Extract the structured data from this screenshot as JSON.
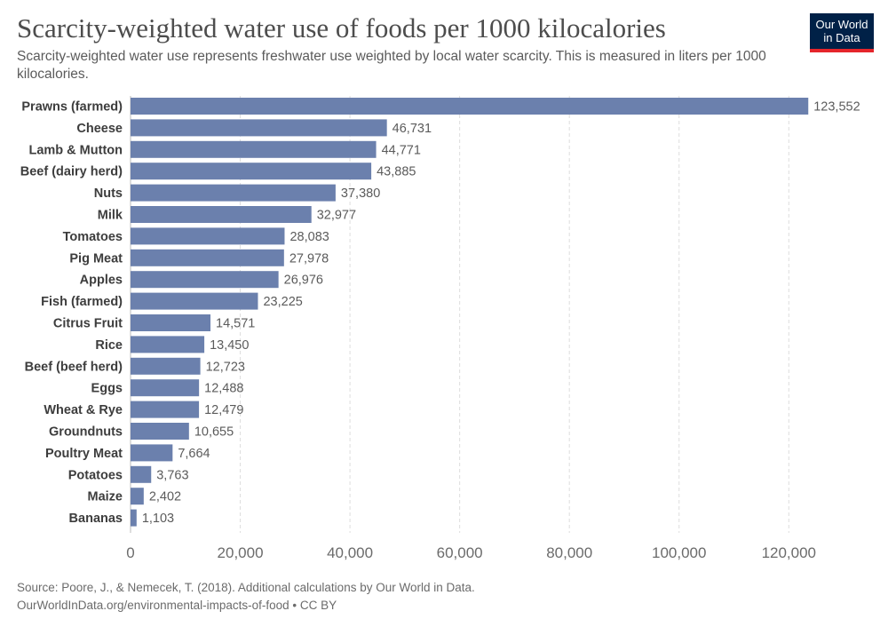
{
  "header": {
    "title": "Scarcity-weighted water use of foods per 1000 kilocalories",
    "subtitle": "Scarcity-weighted water use represents freshwater use weighted by local water scarcity. This is measured in liters per 1000 kilocalories.",
    "logo_line1": "Our World",
    "logo_line2": "in Data"
  },
  "footer": {
    "source": "Source: Poore, J., & Nemecek, T. (2018). Additional calculations by Our World in Data.",
    "url": "OurWorldInData.org/environmental-impacts-of-food • CC BY"
  },
  "colors": {
    "bar": "#6b80ad",
    "grid": "#dddddd",
    "logo_bg": "#002147",
    "logo_accent": "#e5252b"
  },
  "chart_data": {
    "type": "bar",
    "orientation": "horizontal",
    "categories": [
      "Prawns (farmed)",
      "Cheese",
      "Lamb & Mutton",
      "Beef (dairy herd)",
      "Nuts",
      "Milk",
      "Tomatoes",
      "Pig Meat",
      "Apples",
      "Fish (farmed)",
      "Citrus Fruit",
      "Rice",
      "Beef (beef herd)",
      "Eggs",
      "Wheat & Rye",
      "Groundnuts",
      "Poultry Meat",
      "Potatoes",
      "Maize",
      "Bananas"
    ],
    "values": [
      123552,
      46731,
      44771,
      43885,
      37380,
      32977,
      28083,
      27978,
      26976,
      23225,
      14571,
      13450,
      12723,
      12488,
      12479,
      10655,
      7664,
      3763,
      2402,
      1103
    ],
    "value_labels": [
      "123,552",
      "46,731",
      "44,771",
      "43,885",
      "37,380",
      "32,977",
      "28,083",
      "27,978",
      "26,976",
      "23,225",
      "14,571",
      "13,450",
      "12,723",
      "12,488",
      "12,479",
      "10,655",
      "7,664",
      "3,763",
      "2,402",
      "1,103"
    ],
    "x_ticks": [
      0,
      20000,
      40000,
      60000,
      80000,
      100000,
      120000
    ],
    "x_tick_labels": [
      "0",
      "20,000",
      "40,000",
      "60,000",
      "80,000",
      "100,000",
      "120,000"
    ],
    "xlim": [
      0,
      124000
    ],
    "grid": "vertical-dashed"
  }
}
